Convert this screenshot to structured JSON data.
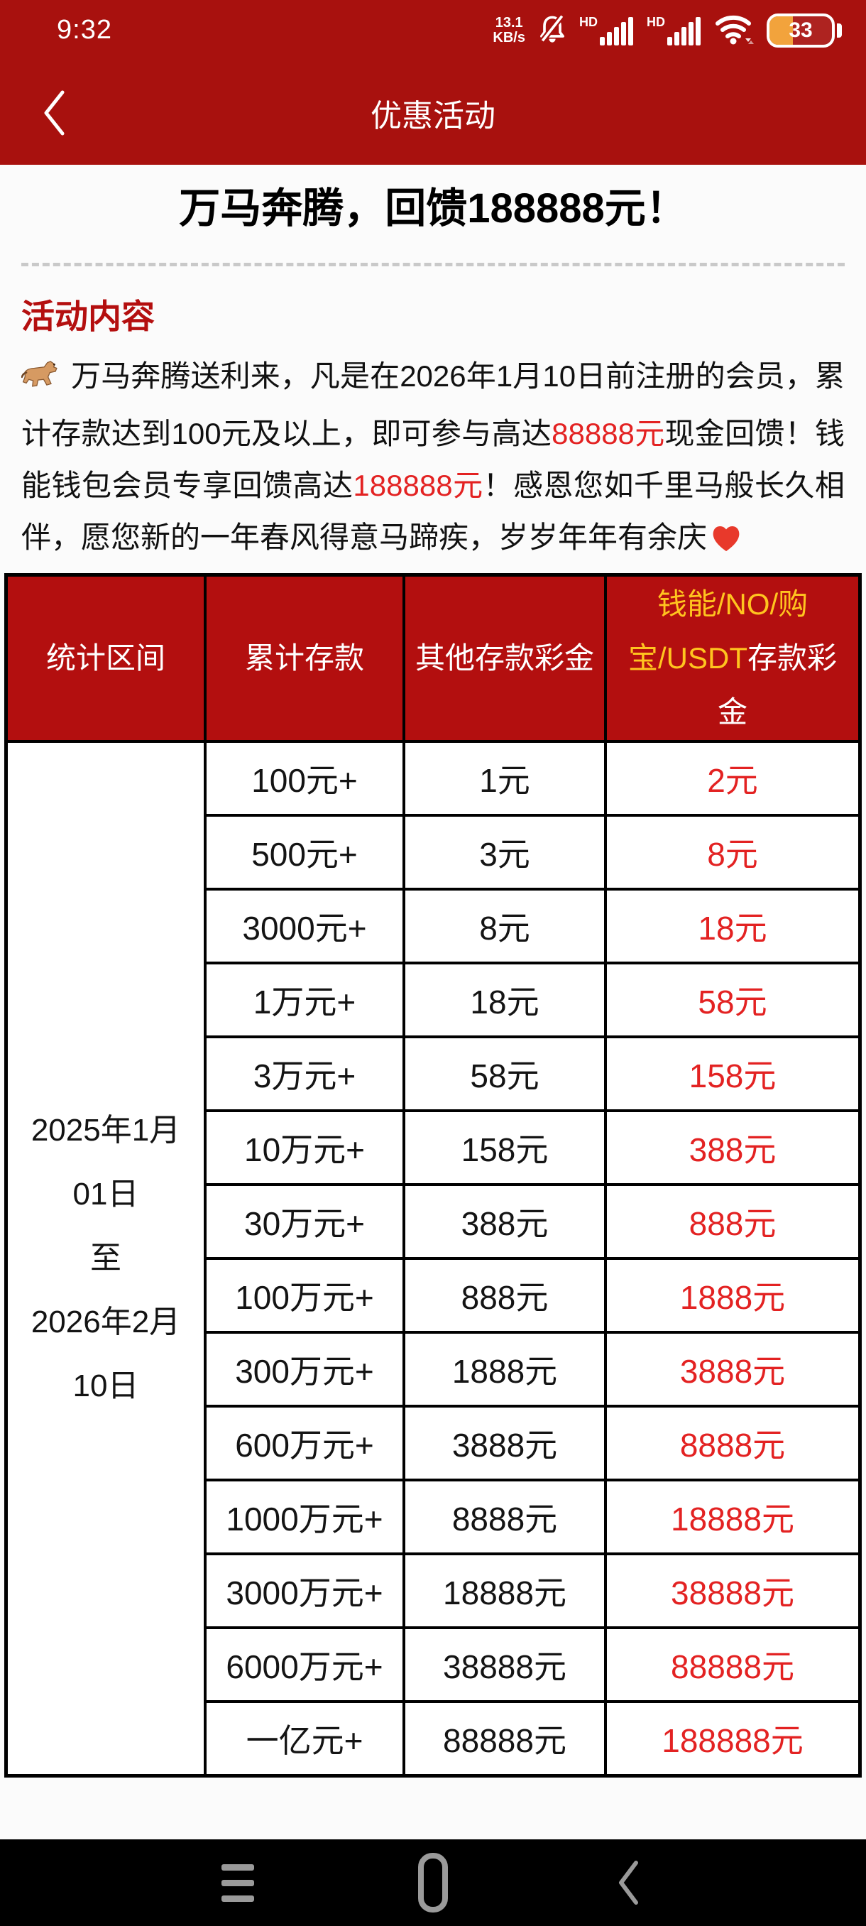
{
  "colors": {
    "app_bar_red": "#a8110e",
    "table_header_red": "#b30f0f",
    "heading_red": "#b40f0f",
    "highlight_red": "#e32222",
    "gold_text": "#ffc41f",
    "battery_fill_orange": "#f2a33c",
    "nav_bar_black": "#000000",
    "nav_icon_gray": "#9a9a9a"
  },
  "status_bar": {
    "time": "9:32",
    "net_speed_value": "13.1",
    "net_speed_unit": "KB/s",
    "sim1_hd_label": "HD",
    "sim2_hd_label": "HD",
    "battery_percent": "33"
  },
  "app_bar": {
    "title": "优惠活动"
  },
  "page": {
    "banner_title": "万马奔腾，回馈188888元！",
    "section_heading": "活动内容",
    "horse_emoji": "🐎",
    "heart_emoji": "❤️",
    "paragraph": {
      "part1": "万马奔腾送利来，凡是在2026年1月10日前注册的会员，累计存款达到100元及以上，即可参与高达",
      "highlight1": "88888元",
      "part2": "现金回馈！钱能钱包会员专享回馈高达",
      "highlight2": "188888元",
      "part3": "！感恩您如千里马般长久相伴，愿您新的一年春风得意马蹄疾，岁岁年年有余庆"
    }
  },
  "table": {
    "columns": {
      "period": "统计区间",
      "deposit": "累计存款",
      "other_bonus": "其他存款彩金",
      "special_highlight": "钱能/NO/购宝/USDT",
      "special_rest": "存款彩金"
    },
    "period_lines": [
      "2025年1月",
      "01日",
      "至",
      "2026年2月",
      "10日"
    ],
    "rows": [
      {
        "deposit": "100元+",
        "other_bonus": "1元",
        "special_bonus": "2元"
      },
      {
        "deposit": "500元+",
        "other_bonus": "3元",
        "special_bonus": "8元"
      },
      {
        "deposit": "3000元+",
        "other_bonus": "8元",
        "special_bonus": "18元"
      },
      {
        "deposit": "1万元+",
        "other_bonus": "18元",
        "special_bonus": "58元"
      },
      {
        "deposit": "3万元+",
        "other_bonus": "58元",
        "special_bonus": "158元"
      },
      {
        "deposit": "10万元+",
        "other_bonus": "158元",
        "special_bonus": "388元"
      },
      {
        "deposit": "30万元+",
        "other_bonus": "388元",
        "special_bonus": "888元"
      },
      {
        "deposit": "100万元+",
        "other_bonus": "888元",
        "special_bonus": "1888元"
      },
      {
        "deposit": "300万元+",
        "other_bonus": "1888元",
        "special_bonus": "3888元"
      },
      {
        "deposit": "600万元+",
        "other_bonus": "3888元",
        "special_bonus": "8888元"
      },
      {
        "deposit": "1000万元+",
        "other_bonus": "8888元",
        "special_bonus": "18888元"
      },
      {
        "deposit": "3000万元+",
        "other_bonus": "18888元",
        "special_bonus": "38888元"
      },
      {
        "deposit": "6000万元+",
        "other_bonus": "38888元",
        "special_bonus": "88888元"
      },
      {
        "deposit": "一亿元+",
        "other_bonus": "88888元",
        "special_bonus": "188888元"
      }
    ]
  }
}
